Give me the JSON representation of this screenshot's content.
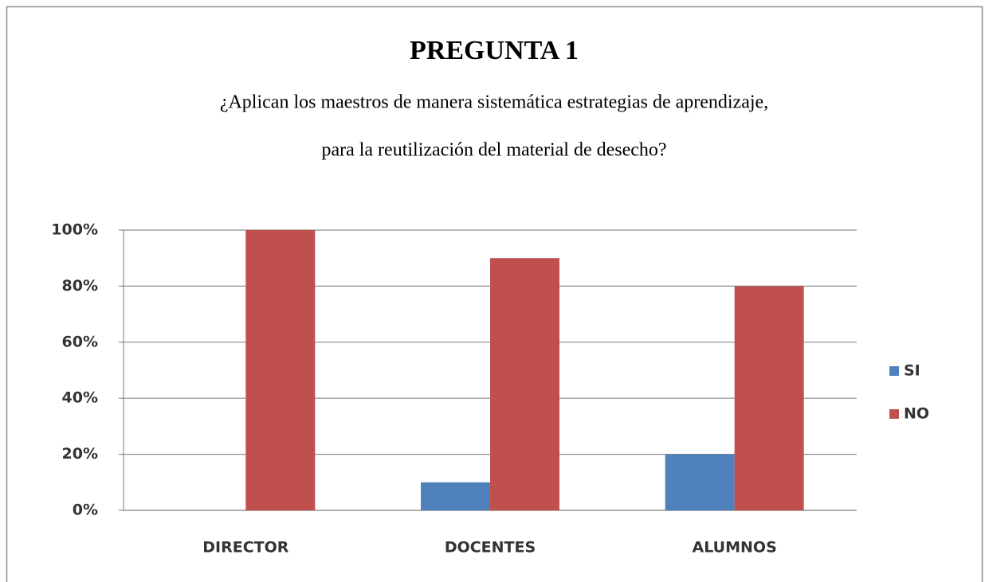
{
  "chart_data": {
    "type": "bar",
    "title": "PREGUNTA 1",
    "subtitle": [
      "¿Aplican los maestros de manera sistemática estrategias de aprendizaje,",
      "para la reutilización del material de desecho?"
    ],
    "categories": [
      "DIRECTOR",
      "DOCENTES",
      "ALUMNOS"
    ],
    "series": [
      {
        "name": "SI",
        "color": "#4f81bd",
        "values": [
          0,
          10,
          20
        ]
      },
      {
        "name": "NO",
        "color": "#c0504d",
        "values": [
          100,
          90,
          80
        ]
      }
    ],
    "ylim": [
      0,
      100
    ],
    "yticks": [
      {
        "value": 0,
        "label": "0%"
      },
      {
        "value": 20,
        "label": "20%"
      },
      {
        "value": 40,
        "label": "40%"
      },
      {
        "value": 60,
        "label": "60%"
      },
      {
        "value": 80,
        "label": "80%"
      },
      {
        "value": 100,
        "label": "100%"
      }
    ],
    "grid": true,
    "legend": "right"
  }
}
